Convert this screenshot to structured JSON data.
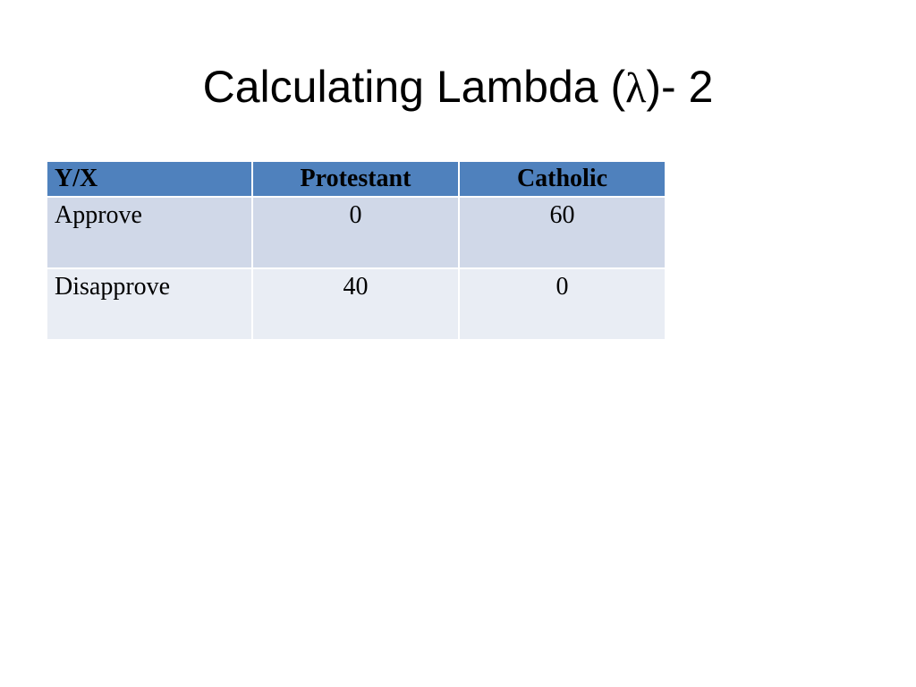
{
  "slide": {
    "title_prefix": "Calculating Lambda (",
    "title_symbol": "λ",
    "title_suffix": ")- 2"
  },
  "table": {
    "headers": [
      "Y/X",
      "Protestant",
      "Catholic"
    ],
    "rows": [
      {
        "label": "Approve",
        "cells": [
          "0",
          "60"
        ]
      },
      {
        "label": "Disapprove",
        "cells": [
          "40",
          "0"
        ]
      }
    ],
    "colors": {
      "header_bg": "#4f81bd",
      "row_odd_bg": "#d0d8e8",
      "row_even_bg": "#e9edf4"
    }
  }
}
